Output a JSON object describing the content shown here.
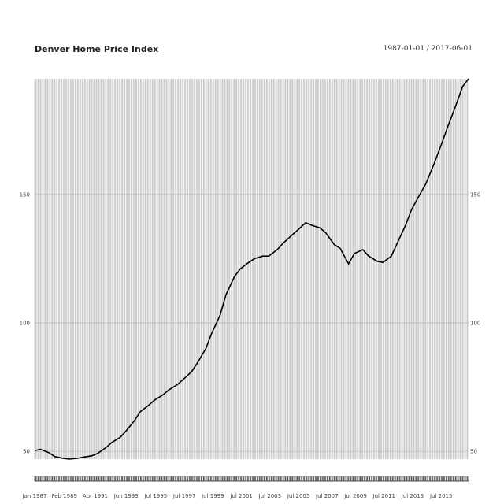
{
  "chart_data": {
    "type": "line",
    "title": "Denver Home Price Index",
    "date_range": "1987-01-01 / 2017-06-01",
    "ylim": [
      47,
      195
    ],
    "xlim": [
      "1987-01-01",
      "2017-06-01"
    ],
    "y_ticks": [
      50,
      100,
      150
    ],
    "y_tick_labels": [
      "50",
      "100",
      "150"
    ],
    "x_ticks": [
      "1987-01-01",
      "1989-02-01",
      "1991-04-01",
      "1993-06-01",
      "1995-07-01",
      "1997-07-01",
      "1999-07-01",
      "2001-07-01",
      "2003-07-01",
      "2005-07-01",
      "2007-07-01",
      "2009-07-01",
      "2011-07-01",
      "2013-07-01",
      "2015-07-01"
    ],
    "x_tick_labels": [
      "Jan 1987",
      "Feb 1989",
      "Apr 1991",
      "Jun 1993",
      "Jul 1995",
      "Jul 1997",
      "Jul 1999",
      "Jul 2001",
      "Jul 2003",
      "Jul 2005",
      "Jul 2007",
      "Jul 2009",
      "Jul 2011",
      "Jul 2013",
      "Jul 2015"
    ],
    "grid": "monthly vertical gridlines, horizontal gridlines at y ticks",
    "line_color": "#000000",
    "series": [
      {
        "values": [
          [
            "1987-01-01",
            50.3
          ],
          [
            "1987-06-01",
            50.8
          ],
          [
            "1988-01-01",
            49.5
          ],
          [
            "1988-06-01",
            48.0
          ],
          [
            "1989-01-01",
            47.3
          ],
          [
            "1989-06-01",
            47.0
          ],
          [
            "1990-01-01",
            47.3
          ],
          [
            "1990-06-01",
            47.8
          ],
          [
            "1991-01-01",
            48.3
          ],
          [
            "1991-06-01",
            49.2
          ],
          [
            "1992-01-01",
            51.5
          ],
          [
            "1992-06-01",
            53.5
          ],
          [
            "1993-01-01",
            55.5
          ],
          [
            "1993-06-01",
            58.0
          ],
          [
            "1994-01-01",
            62.0
          ],
          [
            "1994-06-01",
            65.5
          ],
          [
            "1995-01-01",
            68.0
          ],
          [
            "1995-06-01",
            70.0
          ],
          [
            "1996-01-01",
            72.0
          ],
          [
            "1996-06-01",
            74.0
          ],
          [
            "1997-01-01",
            76.0
          ],
          [
            "1997-06-01",
            78.0
          ],
          [
            "1998-01-01",
            81.0
          ],
          [
            "1998-06-01",
            84.5
          ],
          [
            "1999-01-01",
            90.0
          ],
          [
            "1999-06-01",
            96.0
          ],
          [
            "2000-01-01",
            103.0
          ],
          [
            "2000-06-01",
            111.0
          ],
          [
            "2001-01-01",
            118.0
          ],
          [
            "2001-06-01",
            121.0
          ],
          [
            "2002-01-01",
            123.5
          ],
          [
            "2002-06-01",
            125.0
          ],
          [
            "2003-01-01",
            126.0
          ],
          [
            "2003-06-01",
            126.0
          ],
          [
            "2004-01-01",
            128.5
          ],
          [
            "2004-06-01",
            131.0
          ],
          [
            "2005-01-01",
            134.0
          ],
          [
            "2005-06-01",
            136.0
          ],
          [
            "2006-01-01",
            139.0
          ],
          [
            "2006-06-01",
            138.0
          ],
          [
            "2007-01-01",
            137.0
          ],
          [
            "2007-06-01",
            135.0
          ],
          [
            "2008-01-01",
            130.5
          ],
          [
            "2008-06-01",
            129.0
          ],
          [
            "2009-01-01",
            123.0
          ],
          [
            "2009-06-01",
            127.0
          ],
          [
            "2010-01-01",
            128.5
          ],
          [
            "2010-06-01",
            126.0
          ],
          [
            "2011-01-01",
            124.0
          ],
          [
            "2011-06-01",
            123.5
          ],
          [
            "2012-01-01",
            126.0
          ],
          [
            "2012-06-01",
            131.0
          ],
          [
            "2013-01-01",
            138.0
          ],
          [
            "2013-06-01",
            144.0
          ],
          [
            "2014-01-01",
            150.0
          ],
          [
            "2014-06-01",
            154.0
          ],
          [
            "2015-01-01",
            162.0
          ],
          [
            "2015-06-01",
            168.0
          ],
          [
            "2016-01-01",
            177.0
          ],
          [
            "2016-06-01",
            183.0
          ],
          [
            "2017-01-01",
            192.0
          ],
          [
            "2017-06-01",
            195.0
          ]
        ]
      }
    ]
  }
}
